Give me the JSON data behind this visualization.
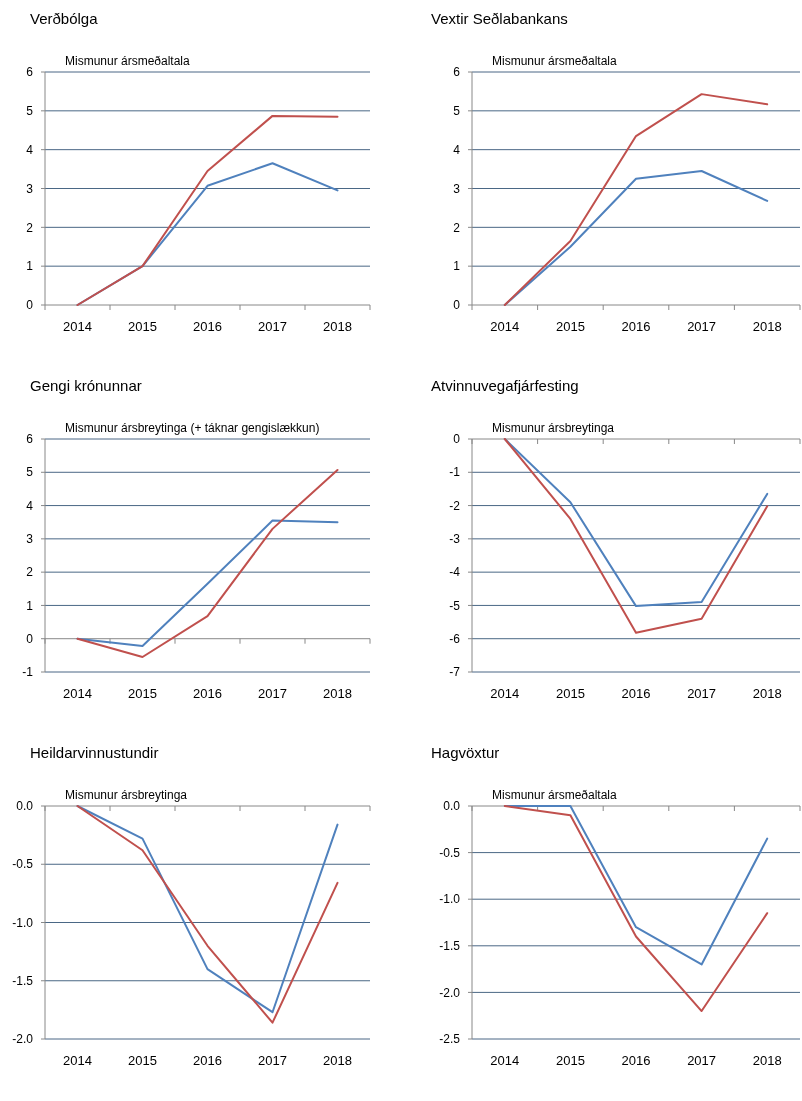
{
  "chart_data": [
    {
      "type": "line",
      "title": "Verðbólga",
      "ylabel": "Mismunur  ársmeðaltala",
      "categories": [
        "2014",
        "2015",
        "2016",
        "2017",
        "2018"
      ],
      "ylim": [
        0,
        6
      ],
      "yticks": [
        0,
        1,
        2,
        3,
        4,
        5,
        6
      ],
      "grid": "y",
      "marker": "none",
      "series": [
        {
          "color": "#4f81bd",
          "values": [
            0,
            1,
            3.07,
            3.65,
            2.95
          ]
        },
        {
          "color": "#c0504d",
          "values": [
            0,
            1,
            3.45,
            4.87,
            4.85
          ]
        }
      ]
    },
    {
      "type": "line",
      "title": "Vextir Seðlabankans",
      "ylabel": "Mismunur  ársmeðaltala",
      "categories": [
        "2014",
        "2015",
        "2016",
        "2017",
        "2018"
      ],
      "ylim": [
        0,
        6
      ],
      "yticks": [
        0,
        1,
        2,
        3,
        4,
        5,
        6
      ],
      "grid": "y",
      "marker": "none",
      "series": [
        {
          "color": "#4f81bd",
          "values": [
            0,
            1.5,
            3.25,
            3.45,
            2.68
          ]
        },
        {
          "color": "#c0504d",
          "values": [
            0,
            1.65,
            4.35,
            5.43,
            5.17
          ]
        }
      ]
    },
    {
      "type": "line",
      "title": "Gengi krónunnar",
      "ylabel": "Mismunur  ársbreytinga  (+ táknar gengislækkun)",
      "categories": [
        "2014",
        "2015",
        "2016",
        "2017",
        "2018"
      ],
      "ylim": [
        -1,
        6
      ],
      "yticks": [
        -1,
        0,
        1,
        2,
        3,
        4,
        5,
        6
      ],
      "grid": "y",
      "marker": "none",
      "series": [
        {
          "color": "#4f81bd",
          "values": [
            0,
            -0.22,
            1.65,
            3.55,
            3.5
          ]
        },
        {
          "color": "#c0504d",
          "values": [
            0,
            -0.55,
            0.68,
            3.3,
            5.07
          ]
        }
      ]
    },
    {
      "type": "line",
      "title": "Atvinnuvegafjárfesting",
      "ylabel": "Mismunur  ársbreytinga",
      "categories": [
        "2014",
        "2015",
        "2016",
        "2017",
        "2018"
      ],
      "ylim": [
        -7,
        0
      ],
      "yticks": [
        -7,
        -6,
        -5,
        -4,
        -3,
        -2,
        -1,
        0
      ],
      "grid": "y",
      "marker": "none",
      "series": [
        {
          "color": "#4f81bd",
          "values": [
            0,
            -1.9,
            -5.02,
            -4.9,
            -1.65
          ]
        },
        {
          "color": "#c0504d",
          "values": [
            0,
            -2.4,
            -5.82,
            -5.4,
            -2.02
          ]
        }
      ]
    },
    {
      "type": "line",
      "title": "Heildarvinnustundir",
      "ylabel": "Mismunur  ársbreytinga",
      "categories": [
        "2014",
        "2015",
        "2016",
        "2017",
        "2018"
      ],
      "ylim": [
        -2,
        0
      ],
      "yticks": [
        {
          "value": -2,
          "label": "-2.0"
        },
        {
          "value": -1.5,
          "label": "-1.5"
        },
        {
          "value": -1,
          "label": "-1.0"
        },
        {
          "value": -0.5,
          "label": "-0.5"
        },
        {
          "value": 0,
          "label": "0.0"
        }
      ],
      "grid": "y",
      "marker": "none",
      "series": [
        {
          "color": "#4f81bd",
          "values": [
            0,
            -0.28,
            -1.4,
            -1.77,
            -0.16
          ]
        },
        {
          "color": "#c0504d",
          "values": [
            0,
            -0.38,
            -1.2,
            -1.86,
            -0.66
          ]
        }
      ]
    },
    {
      "type": "line",
      "title": "Hagvöxtur",
      "ylabel": "Mismunur  ársmeðaltala",
      "categories": [
        "2014",
        "2015",
        "2016",
        "2017",
        "2018"
      ],
      "ylim": [
        -2.5,
        0
      ],
      "yticks": [
        {
          "value": -2.5,
          "label": "-2.5"
        },
        {
          "value": -2,
          "label": "-2.0"
        },
        {
          "value": -1.5,
          "label": "-1.5"
        },
        {
          "value": -1,
          "label": "-1.0"
        },
        {
          "value": -0.5,
          "label": "-0.5"
        },
        {
          "value": 0,
          "label": "0.0"
        }
      ],
      "grid": "y",
      "marker": "none",
      "series": [
        {
          "color": "#4f81bd",
          "values": [
            0,
            0,
            -1.3,
            -1.7,
            -0.35
          ]
        },
        {
          "color": "#c0504d",
          "values": [
            0,
            -0.1,
            -1.4,
            -2.2,
            -1.15
          ]
        }
      ]
    }
  ]
}
